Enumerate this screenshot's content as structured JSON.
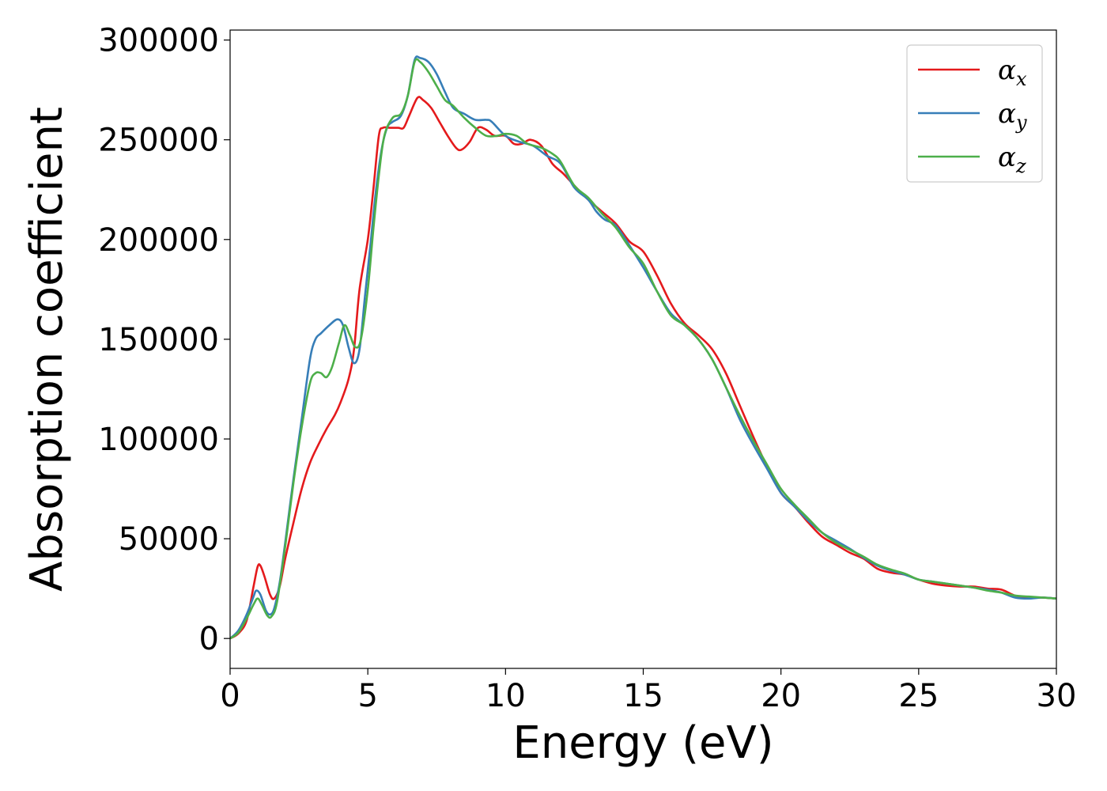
{
  "chart_data": {
    "type": "line",
    "title": "",
    "xlabel": "Energy (eV)",
    "ylabel": "Absorption coefficient",
    "xlim": [
      0,
      30
    ],
    "ylim": [
      -15000,
      305000
    ],
    "xticks": [
      0,
      5,
      10,
      15,
      20,
      25,
      30
    ],
    "yticks": [
      0,
      50000,
      100000,
      150000,
      200000,
      250000,
      300000
    ],
    "grid": false,
    "legend_position": "top-right",
    "series": [
      {
        "name": "α",
        "name_sub": "x",
        "color": "#e41a1c",
        "points": [
          [
            0,
            0
          ],
          [
            0.3,
            2500
          ],
          [
            0.6,
            9000
          ],
          [
            0.85,
            26000
          ],
          [
            1.0,
            36000
          ],
          [
            1.1,
            36500
          ],
          [
            1.25,
            31000
          ],
          [
            1.45,
            22000
          ],
          [
            1.6,
            20000
          ],
          [
            1.8,
            26000
          ],
          [
            2.0,
            40000
          ],
          [
            2.3,
            58000
          ],
          [
            2.6,
            75000
          ],
          [
            2.9,
            88000
          ],
          [
            3.2,
            97000
          ],
          [
            3.5,
            105000
          ],
          [
            3.8,
            112000
          ],
          [
            4.0,
            118000
          ],
          [
            4.3,
            130000
          ],
          [
            4.5,
            145000
          ],
          [
            4.7,
            175000
          ],
          [
            5.0,
            200000
          ],
          [
            5.2,
            225000
          ],
          [
            5.4,
            252000
          ],
          [
            5.55,
            256000
          ],
          [
            5.8,
            256000
          ],
          [
            6.1,
            256000
          ],
          [
            6.3,
            256000
          ],
          [
            6.5,
            262000
          ],
          [
            6.8,
            271000
          ],
          [
            7.0,
            270000
          ],
          [
            7.3,
            266000
          ],
          [
            7.6,
            259000
          ],
          [
            7.9,
            252000
          ],
          [
            8.2,
            246000
          ],
          [
            8.4,
            245000
          ],
          [
            8.7,
            249000
          ],
          [
            9.0,
            256000
          ],
          [
            9.3,
            255000
          ],
          [
            9.6,
            252000
          ],
          [
            10.0,
            252000
          ],
          [
            10.3,
            248000
          ],
          [
            10.6,
            248000
          ],
          [
            10.9,
            250000
          ],
          [
            11.3,
            247000
          ],
          [
            11.7,
            238000
          ],
          [
            12.1,
            233000
          ],
          [
            12.5,
            227000
          ],
          [
            13.0,
            220000
          ],
          [
            13.5,
            214000
          ],
          [
            14.0,
            208000
          ],
          [
            14.5,
            199000
          ],
          [
            15.0,
            194000
          ],
          [
            15.5,
            182000
          ],
          [
            16.0,
            168000
          ],
          [
            16.5,
            158000
          ],
          [
            17.0,
            152000
          ],
          [
            17.5,
            145000
          ],
          [
            18.0,
            133000
          ],
          [
            18.5,
            117000
          ],
          [
            19.0,
            101000
          ],
          [
            19.5,
            86000
          ],
          [
            20.0,
            73000
          ],
          [
            20.5,
            66000
          ],
          [
            21.0,
            58000
          ],
          [
            21.5,
            51000
          ],
          [
            22.0,
            47000
          ],
          [
            22.5,
            43000
          ],
          [
            23.0,
            40000
          ],
          [
            23.5,
            35000
          ],
          [
            24.0,
            33000
          ],
          [
            24.5,
            32000
          ],
          [
            25.0,
            29500
          ],
          [
            25.5,
            27500
          ],
          [
            26.0,
            26500
          ],
          [
            26.5,
            26000
          ],
          [
            27.0,
            26000
          ],
          [
            27.5,
            25000
          ],
          [
            28.0,
            24500
          ],
          [
            28.5,
            21500
          ],
          [
            29.0,
            20500
          ],
          [
            29.5,
            20500
          ],
          [
            30.0,
            20000
          ]
        ]
      },
      {
        "name": "α",
        "name_sub": "y",
        "color": "#377eb8",
        "points": [
          [
            0,
            0
          ],
          [
            0.3,
            4000
          ],
          [
            0.6,
            12000
          ],
          [
            0.85,
            21000
          ],
          [
            0.95,
            24000
          ],
          [
            1.1,
            22000
          ],
          [
            1.3,
            14000
          ],
          [
            1.45,
            12000
          ],
          [
            1.6,
            15000
          ],
          [
            1.8,
            28000
          ],
          [
            2.0,
            48000
          ],
          [
            2.3,
            80000
          ],
          [
            2.6,
            110000
          ],
          [
            2.9,
            140000
          ],
          [
            3.1,
            150000
          ],
          [
            3.3,
            153000
          ],
          [
            3.6,
            157000
          ],
          [
            3.9,
            160000
          ],
          [
            4.1,
            157000
          ],
          [
            4.3,
            146000
          ],
          [
            4.5,
            138000
          ],
          [
            4.7,
            145000
          ],
          [
            4.9,
            172000
          ],
          [
            5.1,
            198000
          ],
          [
            5.3,
            225000
          ],
          [
            5.5,
            245000
          ],
          [
            5.7,
            256000
          ],
          [
            5.9,
            259000
          ],
          [
            6.2,
            262000
          ],
          [
            6.45,
            272000
          ],
          [
            6.7,
            290000
          ],
          [
            6.9,
            291000
          ],
          [
            7.2,
            289000
          ],
          [
            7.5,
            283000
          ],
          [
            7.8,
            274000
          ],
          [
            8.1,
            266000
          ],
          [
            8.5,
            263000
          ],
          [
            8.9,
            260000
          ],
          [
            9.3,
            260000
          ],
          [
            9.5,
            259000
          ],
          [
            10.0,
            252000
          ],
          [
            10.5,
            249000
          ],
          [
            11.0,
            247000
          ],
          [
            11.5,
            242000
          ],
          [
            12.0,
            238000
          ],
          [
            12.5,
            226000
          ],
          [
            13.0,
            220000
          ],
          [
            13.3,
            214000
          ],
          [
            13.6,
            210000
          ],
          [
            14.0,
            207000
          ],
          [
            14.5,
            197000
          ],
          [
            15.0,
            186000
          ],
          [
            15.5,
            174000
          ],
          [
            16.0,
            163000
          ],
          [
            16.5,
            157000
          ],
          [
            17.0,
            150000
          ],
          [
            17.5,
            140000
          ],
          [
            18.0,
            126000
          ],
          [
            18.5,
            110000
          ],
          [
            19.0,
            97000
          ],
          [
            19.5,
            85000
          ],
          [
            20.0,
            73000
          ],
          [
            20.5,
            66000
          ],
          [
            21.0,
            59000
          ],
          [
            21.5,
            53000
          ],
          [
            22.0,
            49000
          ],
          [
            22.5,
            45000
          ],
          [
            23.0,
            40500
          ],
          [
            23.5,
            36500
          ],
          [
            24.0,
            34000
          ],
          [
            24.5,
            32000
          ],
          [
            25.0,
            29500
          ],
          [
            25.5,
            28500
          ],
          [
            26.0,
            27500
          ],
          [
            26.5,
            26500
          ],
          [
            27.0,
            25500
          ],
          [
            27.5,
            24500
          ],
          [
            28.0,
            23000
          ],
          [
            28.5,
            20500
          ],
          [
            29.0,
            20000
          ],
          [
            29.5,
            20500
          ],
          [
            30.0,
            20000
          ]
        ]
      },
      {
        "name": "α",
        "name_sub": "z",
        "color": "#4daf4a",
        "points": [
          [
            0,
            0
          ],
          [
            0.3,
            3000
          ],
          [
            0.6,
            10000
          ],
          [
            0.85,
            17000
          ],
          [
            1.0,
            20000
          ],
          [
            1.15,
            17000
          ],
          [
            1.35,
            11500
          ],
          [
            1.5,
            11000
          ],
          [
            1.7,
            18000
          ],
          [
            2.0,
            46000
          ],
          [
            2.3,
            78000
          ],
          [
            2.6,
            106000
          ],
          [
            2.9,
            128000
          ],
          [
            3.1,
            133000
          ],
          [
            3.3,
            133000
          ],
          [
            3.5,
            131000
          ],
          [
            3.7,
            136000
          ],
          [
            3.95,
            148000
          ],
          [
            4.15,
            157000
          ],
          [
            4.35,
            152000
          ],
          [
            4.55,
            146000
          ],
          [
            4.75,
            150000
          ],
          [
            5.0,
            175000
          ],
          [
            5.2,
            205000
          ],
          [
            5.4,
            232000
          ],
          [
            5.6,
            252000
          ],
          [
            5.9,
            261000
          ],
          [
            6.2,
            263000
          ],
          [
            6.45,
            272000
          ],
          [
            6.7,
            289000
          ],
          [
            6.9,
            289000
          ],
          [
            7.2,
            284000
          ],
          [
            7.5,
            277000
          ],
          [
            7.8,
            270000
          ],
          [
            8.1,
            267000
          ],
          [
            8.5,
            261000
          ],
          [
            8.9,
            256000
          ],
          [
            9.3,
            252000
          ],
          [
            9.7,
            252000
          ],
          [
            10.0,
            253000
          ],
          [
            10.4,
            252000
          ],
          [
            10.8,
            248000
          ],
          [
            11.3,
            246000
          ],
          [
            11.7,
            243000
          ],
          [
            12.0,
            239000
          ],
          [
            12.5,
            227000
          ],
          [
            13.0,
            221000
          ],
          [
            13.5,
            213000
          ],
          [
            14.0,
            206000
          ],
          [
            14.5,
            196000
          ],
          [
            15.0,
            188000
          ],
          [
            15.5,
            174000
          ],
          [
            16.0,
            162000
          ],
          [
            16.5,
            157000
          ],
          [
            17.0,
            150000
          ],
          [
            17.5,
            140000
          ],
          [
            18.0,
            126000
          ],
          [
            18.5,
            112000
          ],
          [
            19.0,
            99000
          ],
          [
            19.5,
            87000
          ],
          [
            20.0,
            75000
          ],
          [
            20.5,
            67000
          ],
          [
            21.0,
            60000
          ],
          [
            21.5,
            53000
          ],
          [
            22.0,
            48000
          ],
          [
            22.5,
            44500
          ],
          [
            23.0,
            41000
          ],
          [
            23.5,
            37000
          ],
          [
            24.0,
            34500
          ],
          [
            24.5,
            32500
          ],
          [
            25.0,
            29500
          ],
          [
            25.5,
            28500
          ],
          [
            26.0,
            27500
          ],
          [
            26.5,
            26500
          ],
          [
            27.0,
            25500
          ],
          [
            27.5,
            24000
          ],
          [
            28.0,
            23000
          ],
          [
            28.5,
            21500
          ],
          [
            29.0,
            21000
          ],
          [
            29.5,
            20500
          ],
          [
            30.0,
            20000
          ]
        ]
      }
    ]
  }
}
